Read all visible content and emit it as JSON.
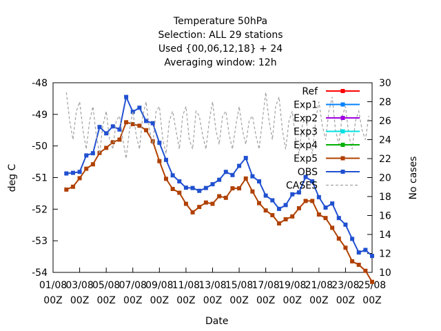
{
  "chart_data": {
    "type": "line",
    "title_lines": [
      "Temperature 50hPa",
      "Selection: ALL      29 stations",
      "Used {00,06,12,18} + 24",
      "Averaging window: 12h"
    ],
    "xlabel": "Date",
    "ylabel": "deg C",
    "y2label": "No cases",
    "x_ticks": [
      [
        "01/08",
        "00Z"
      ],
      [
        "03/08",
        "00Z"
      ],
      [
        "05/08",
        "00Z"
      ],
      [
        "07/08",
        "00Z"
      ],
      [
        "09/08",
        "00Z"
      ],
      [
        "11/08",
        "00Z"
      ],
      [
        "13/08",
        "00Z"
      ],
      [
        "15/08",
        "00Z"
      ],
      [
        "17/08",
        "00Z"
      ],
      [
        "19/08",
        "00Z"
      ],
      [
        "21/08",
        "00Z"
      ],
      [
        "23/08",
        "00Z"
      ],
      [
        "25/08",
        "00Z"
      ]
    ],
    "x_range_days": [
      0,
      24
    ],
    "ylim": [
      -54,
      -48
    ],
    "y_ticks": [
      -48,
      -49,
      -50,
      -51,
      -52,
      -53,
      -54
    ],
    "y2lim": [
      10,
      30
    ],
    "y2_ticks": [
      30,
      28,
      26,
      24,
      22,
      20,
      18,
      16,
      14,
      12,
      10
    ],
    "grid": false,
    "legend_position": "top-right",
    "series": [
      {
        "name": "Ref",
        "color": "#ff0000",
        "marker": "square",
        "x": [],
        "y": []
      },
      {
        "name": "Exp1",
        "color": "#0080ff",
        "marker": "square",
        "x": [],
        "y": []
      },
      {
        "name": "Exp2",
        "color": "#a000e0",
        "marker": "square",
        "x": [],
        "y": []
      },
      {
        "name": "Exp3",
        "color": "#00e0e0",
        "marker": "square",
        "x": [],
        "y": []
      },
      {
        "name": "Exp4",
        "color": "#00b000",
        "marker": "square",
        "x": [],
        "y": []
      },
      {
        "name": "Exp5",
        "color": "#b04000",
        "marker": "square",
        "x": [
          1.0,
          1.5,
          2.0,
          2.5,
          3.0,
          3.5,
          4.0,
          4.5,
          5.0,
          5.5,
          6.0,
          6.5,
          7.0,
          7.5,
          8.0,
          8.5,
          9.0,
          9.5,
          10.0,
          10.5,
          11.0,
          11.5,
          12.0,
          12.5,
          13.0,
          13.5,
          14.0,
          14.5,
          15.0,
          15.5,
          16.0,
          16.5,
          17.0,
          17.5,
          18.0,
          18.5,
          19.0,
          19.5,
          20.0,
          20.5,
          21.0,
          21.5,
          22.0,
          22.5,
          23.0,
          23.5,
          24.0
        ],
        "y": [
          -51.38,
          -51.29,
          -51.02,
          -50.72,
          -50.58,
          -50.22,
          -50.06,
          -49.88,
          -49.8,
          -49.25,
          -49.31,
          -49.36,
          -49.5,
          -49.85,
          -50.48,
          -51.04,
          -51.36,
          -51.48,
          -51.83,
          -52.1,
          -51.93,
          -51.79,
          -51.83,
          -51.59,
          -51.64,
          -51.34,
          -51.34,
          -51.03,
          -51.44,
          -51.81,
          -52.04,
          -52.19,
          -52.45,
          -52.32,
          -52.23,
          -51.97,
          -51.74,
          -51.74,
          -52.17,
          -52.28,
          -52.59,
          -52.93,
          -53.22,
          -53.65,
          -53.76,
          -53.95,
          -54.3
        ]
      },
      {
        "name": "OBS",
        "color": "#2050d0",
        "marker": "square",
        "x": [
          1.0,
          1.5,
          2.0,
          2.5,
          3.0,
          3.5,
          4.0,
          4.5,
          5.0,
          5.5,
          6.0,
          6.5,
          7.0,
          7.5,
          8.0,
          8.5,
          9.0,
          9.5,
          10.0,
          10.5,
          11.0,
          11.5,
          12.0,
          12.5,
          13.0,
          13.5,
          14.0,
          14.5,
          15.0,
          15.5,
          16.0,
          16.5,
          17.0,
          17.5,
          18.0,
          18.5,
          19.0,
          19.5,
          20.0,
          20.5,
          21.0,
          21.5,
          22.0,
          22.5,
          23.0,
          23.5,
          24.0
        ],
        "y": [
          -50.87,
          -50.85,
          -50.82,
          -50.3,
          -50.23,
          -49.4,
          -49.6,
          -49.38,
          -49.48,
          -48.45,
          -48.92,
          -48.79,
          -49.21,
          -49.28,
          -49.9,
          -50.44,
          -50.93,
          -51.12,
          -51.32,
          -51.33,
          -51.42,
          -51.33,
          -51.21,
          -51.07,
          -50.82,
          -50.92,
          -50.63,
          -50.38,
          -50.96,
          -51.12,
          -51.57,
          -51.72,
          -51.99,
          -51.87,
          -51.53,
          -51.47,
          -50.98,
          -51.12,
          -51.62,
          -51.95,
          -51.82,
          -52.28,
          -52.49,
          -52.94,
          -53.37,
          -53.29,
          -53.48
        ]
      },
      {
        "name": "CASES",
        "color": "#a0a0a0",
        "marker": "none",
        "dashed": true,
        "axis": "right",
        "x": [
          1.0,
          1.25,
          1.5,
          1.75,
          2.0,
          2.25,
          2.5,
          2.75,
          3.0,
          3.25,
          3.5,
          3.75,
          4.0,
          4.25,
          4.5,
          4.75,
          5.0,
          5.25,
          5.5,
          5.75,
          6.0,
          6.25,
          6.5,
          6.75,
          7.0,
          7.25,
          7.5,
          7.75,
          8.0,
          8.25,
          8.5,
          8.75,
          9.0,
          9.25,
          9.5,
          9.75,
          10.0,
          10.25,
          10.5,
          10.75,
          11.0,
          11.25,
          11.5,
          11.75,
          12.0,
          12.25,
          12.5,
          12.75,
          13.0,
          13.25,
          13.5,
          13.75,
          14.0,
          14.25,
          14.5,
          14.75,
          15.0,
          15.25,
          15.5,
          15.75,
          16.0,
          16.25,
          16.5,
          16.75,
          17.0,
          17.25,
          17.5,
          17.75,
          18.0,
          18.25,
          18.5,
          18.75,
          19.0,
          19.25,
          19.5,
          19.75,
          20.0,
          20.25,
          20.5,
          20.75,
          21.0,
          21.25,
          21.5,
          21.75,
          22.0,
          22.25,
          22.5,
          22.75,
          23.0,
          23.25,
          23.5,
          23.75
        ],
        "y": [
          29.0,
          26.0,
          24.0,
          27.0,
          28.0,
          25.0,
          23.0,
          26.0,
          27.5,
          24.5,
          22.5,
          25.5,
          27.0,
          24.0,
          23.0,
          26.0,
          26.5,
          24.0,
          22.0,
          25.0,
          27.0,
          24.5,
          23.0,
          26.5,
          28.0,
          25.0,
          23.5,
          27.0,
          27.5,
          24.0,
          22.5,
          26.0,
          27.0,
          25.0,
          23.0,
          26.5,
          27.5,
          24.0,
          23.0,
          27.0,
          26.5,
          24.5,
          23.0,
          26.0,
          28.0,
          25.0,
          23.5,
          26.5,
          27.0,
          24.5,
          23.0,
          25.5,
          27.5,
          25.0,
          23.5,
          26.0,
          26.5,
          24.5,
          23.0,
          26.0,
          29.0,
          26.0,
          24.0,
          27.5,
          28.5,
          25.0,
          23.0,
          26.0,
          27.0,
          24.0,
          22.5,
          25.5,
          26.5,
          24.0,
          22.5,
          26.0,
          28.0,
          25.5,
          24.0,
          27.0,
          28.5,
          25.0,
          23.5,
          26.5,
          27.5,
          24.5,
          23.0,
          26.0,
          27.0,
          25.0,
          24.0,
          26.5
        ]
      }
    ]
  }
}
